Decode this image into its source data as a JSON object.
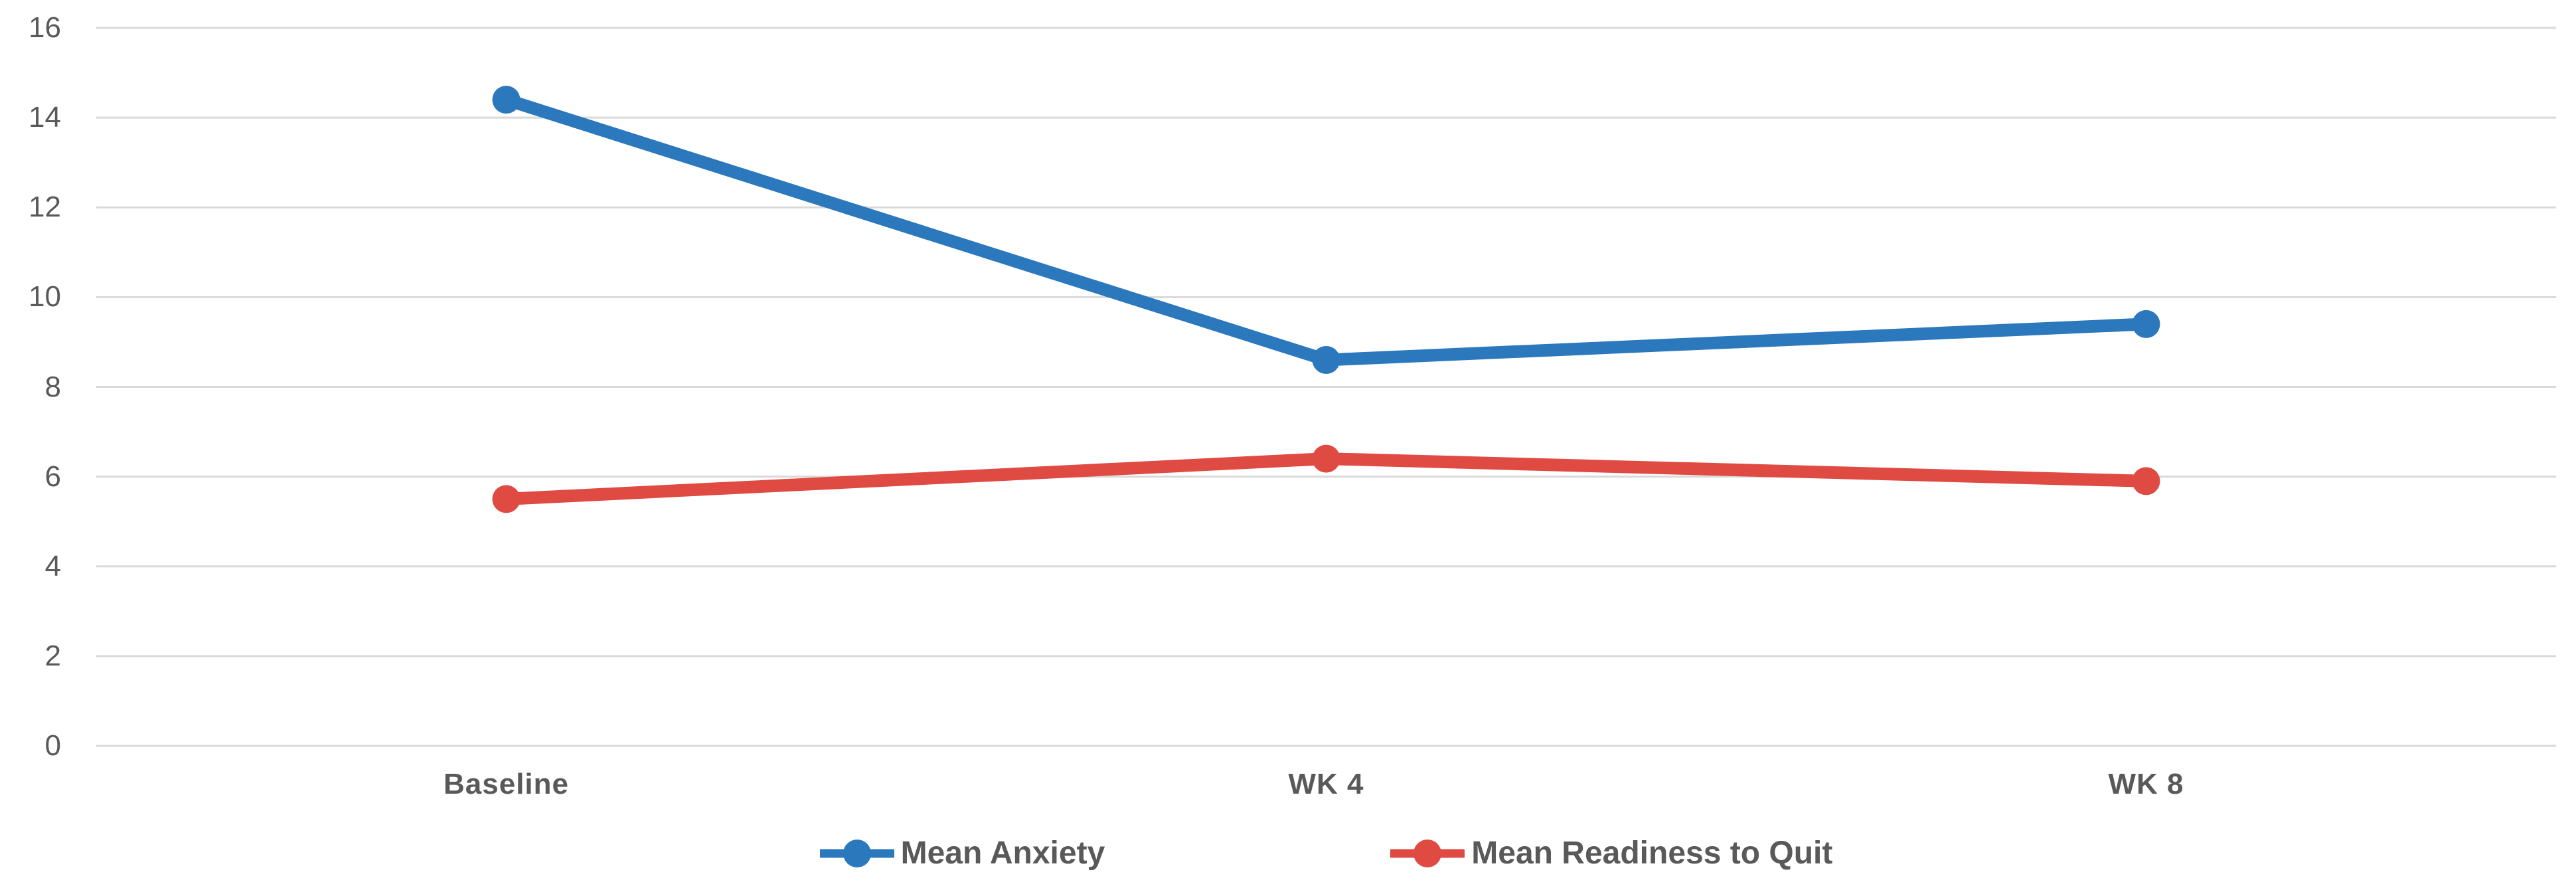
{
  "chart_data": {
    "type": "line",
    "title": "",
    "xlabel": "",
    "ylabel": "",
    "categories": [
      "Baseline",
      "WK 4",
      "WK 8"
    ],
    "series": [
      {
        "name": "Mean Anxiety",
        "color": "#2B78BD",
        "values": [
          14.4,
          8.6,
          9.4
        ]
      },
      {
        "name": "Mean Readiness to Quit",
        "color": "#DF4A42",
        "values": [
          5.5,
          6.4,
          5.9
        ]
      }
    ],
    "ylim": [
      0,
      16
    ],
    "ytick_step": 2,
    "yticks": [
      0,
      2,
      4,
      6,
      8,
      10,
      12,
      14,
      16
    ],
    "grid": "horizontal",
    "gridline_color": "#D9D9D9",
    "text_color": "#595959",
    "legend_position": "bottom",
    "marker": "circle"
  }
}
